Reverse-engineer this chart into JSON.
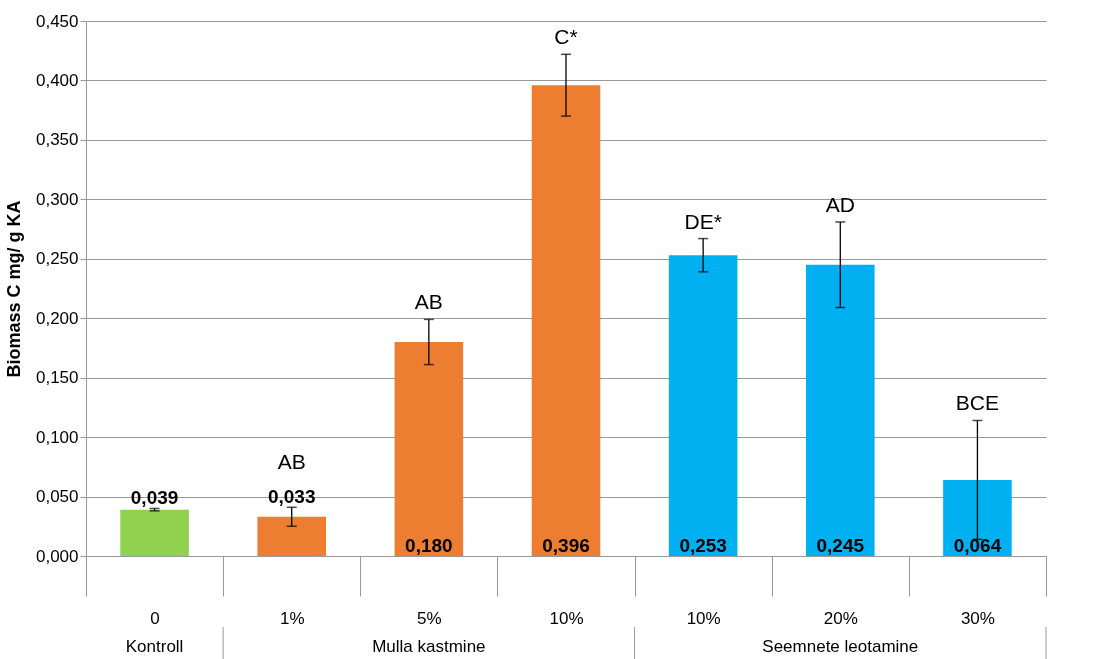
{
  "chart_data": {
    "type": "bar",
    "ylabel": "Biomass C mg/ g KA",
    "categories": [
      "0",
      "1%",
      "5%",
      "10%",
      "10%",
      "20%",
      "30%"
    ],
    "values": [
      0.039,
      0.033,
      0.18,
      0.396,
      0.253,
      0.245,
      0.064
    ],
    "value_labels": [
      "0,039",
      "0,033",
      "0,180",
      "0,396",
      "0,253",
      "0,245",
      "0,064"
    ],
    "errors": [
      0.001,
      0.008,
      0.019,
      0.026,
      0.014,
      0.036,
      0.05
    ],
    "colors": [
      "#92d050",
      "#ed7d31",
      "#ed7d31",
      "#ed7d31",
      "#00b0f0",
      "#00b0f0",
      "#00b0f0"
    ],
    "ylim": [
      0,
      0.45
    ],
    "yticks": [
      {
        "value": 0,
        "label": "0,000"
      },
      {
        "value": 0.05,
        "label": "0,050"
      },
      {
        "value": 0.1,
        "label": "0,100"
      },
      {
        "value": 0.15,
        "label": "0,150"
      },
      {
        "value": 0.2,
        "label": "0,200"
      },
      {
        "value": 0.25,
        "label": "0,250"
      },
      {
        "value": 0.3,
        "label": "0,300"
      },
      {
        "value": 0.35,
        "label": "0,350"
      },
      {
        "value": 0.4,
        "label": "0,400"
      },
      {
        "value": 0.45,
        "label": "0,450"
      }
    ],
    "grid": "y",
    "annotations": [
      "AB",
      "AB",
      "C*",
      "DE*",
      "AD",
      "BCE",
      "Kontroll",
      "Mulla kastmine",
      "Seemnete leotamine"
    ]
  }
}
